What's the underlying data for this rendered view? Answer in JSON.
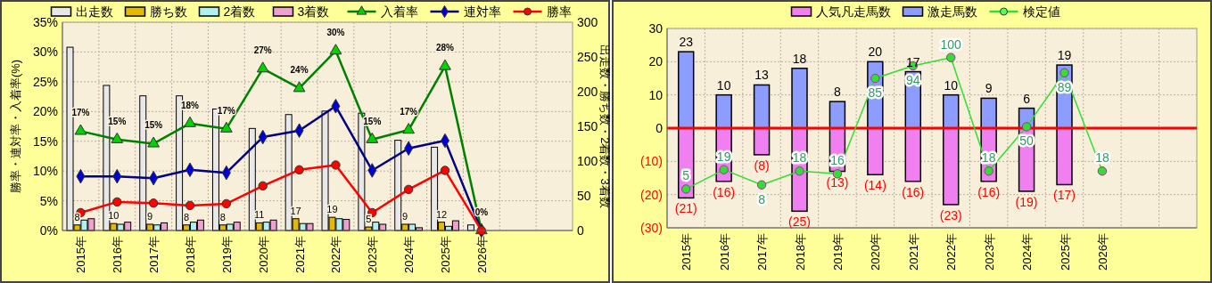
{
  "chart_data": [
    {
      "type": "bar",
      "categories": [
        "2015年",
        "2016年",
        "2017年",
        "2018年",
        "2019年",
        "2020年",
        "2021年",
        "2022年",
        "2023年",
        "2024年",
        "2025年",
        "2026年",
        null,
        null
      ],
      "ylabel": "勝率・連対率・入着率(%)",
      "y2label": "出走数・勝ち数・2着数・3着数",
      "ylim": [
        0,
        35
      ],
      "yticks": [
        {
          "value": 0,
          "label": "0%"
        },
        {
          "value": 5,
          "label": "5%"
        },
        {
          "value": 10,
          "label": "10%"
        },
        {
          "value": 15,
          "label": "15%"
        },
        {
          "value": 20,
          "label": "20%"
        },
        {
          "value": 25,
          "label": "25%"
        },
        {
          "value": 30,
          "label": "30%"
        },
        {
          "value": 35,
          "label": "35%"
        }
      ],
      "y2lim": [
        0,
        300
      ],
      "y2ticks": [
        0,
        50,
        100,
        150,
        200,
        250,
        300
      ],
      "grid": true,
      "legend": "top",
      "series": [
        {
          "name": "出走数",
          "axis": "y2",
          "color": "#e8e8e8",
          "values": [
            264,
            209,
            194,
            194,
            175,
            147,
            167,
            172,
            169,
            130,
            120,
            8,
            null,
            null
          ]
        },
        {
          "name": "勝ち数",
          "axis": "y2",
          "color": "#e6b800",
          "values": [
            8,
            10,
            9,
            8,
            8,
            11,
            17,
            19,
            5,
            9,
            12,
            0,
            null,
            null
          ],
          "value_labels": [
            "8",
            "10",
            "9",
            "8",
            "8",
            "11",
            "17",
            "19",
            "5",
            "9",
            "12",
            null,
            null,
            null
          ]
        },
        {
          "name": "2着数",
          "axis": "y2",
          "color": "#b0f0f0",
          "values": [
            15,
            9,
            8,
            12,
            9,
            12,
            10,
            17,
            12,
            9,
            6,
            0,
            null,
            null
          ]
        },
        {
          "name": "3着数",
          "axis": "y2",
          "color": "#f0a0d0",
          "values": [
            17,
            12,
            11,
            15,
            12,
            15,
            10,
            16,
            9,
            4,
            14,
            0,
            null,
            null
          ]
        },
        {
          "name": "入着率",
          "type": "line",
          "color": "#008000",
          "marker": "triangle",
          "values": [
            16.7,
            15.3,
            14.6,
            18.0,
            17.1,
            27.2,
            23.9,
            30.2,
            15.3,
            16.9,
            27.6,
            0,
            null,
            null
          ],
          "value_labels": [
            "17%",
            "15%",
            "15%",
            "18%",
            "17%",
            "27%",
            "24%",
            "30%",
            "15%",
            "17%",
            "28%",
            "0%",
            null,
            null
          ]
        },
        {
          "name": "連対率",
          "type": "line",
          "color": "#000080",
          "marker": "diamond",
          "values": [
            9.1,
            9.1,
            8.8,
            10.2,
            9.7,
            15.7,
            16.8,
            20.9,
            10.1,
            13.8,
            15.1,
            0,
            null,
            null
          ]
        },
        {
          "name": "勝率",
          "type": "line",
          "color": "#ff0000",
          "marker": "circle",
          "values": [
            3.0,
            4.8,
            4.6,
            4.2,
            4.5,
            7.5,
            10.2,
            11.0,
            3.0,
            6.9,
            10.1,
            0,
            null,
            null
          ]
        }
      ]
    },
    {
      "type": "bar",
      "stacked": true,
      "categories": [
        "2015年",
        "2016年",
        "2017年",
        "2018年",
        "2019年",
        "2020年",
        "2021年",
        "2022年",
        "2023年",
        "2024年",
        "2025年",
        "2026年",
        null,
        null
      ],
      "ylim": [
        -30,
        30
      ],
      "yticks": [
        {
          "value": -30,
          "label": "(30)"
        },
        {
          "value": -20,
          "label": "(20)"
        },
        {
          "value": -10,
          "label": "(10)"
        },
        0,
        10,
        20,
        30
      ],
      "y2lim": [
        -23,
        121
      ],
      "grid": true,
      "legend": "top",
      "ref_lines": [
        {
          "axis": "y",
          "value": 0,
          "color": "#ff0000"
        }
      ],
      "series": [
        {
          "name": "人気凡走馬数",
          "color": "#f080f0",
          "values": [
            -21,
            -16,
            -8,
            -25,
            -13,
            -14,
            -16,
            -23,
            -16,
            -19,
            -17,
            null,
            null,
            null
          ],
          "value_labels": [
            "(21)",
            "(16)",
            "(8)",
            "(25)",
            "(13)",
            "(14)",
            "(16)",
            "(23)",
            "(16)",
            "(19)",
            "(17)",
            null,
            null,
            null
          ]
        },
        {
          "name": "激走馬数",
          "color": "#8c9cff",
          "values": [
            23,
            10,
            13,
            18,
            8,
            20,
            17,
            10,
            9,
            6,
            19,
            null,
            null,
            null
          ],
          "value_labels": [
            "23",
            "10",
            "13",
            "18",
            "8",
            "20",
            "17",
            "10",
            "9",
            "6",
            "19",
            null,
            null,
            null
          ]
        },
        {
          "name": "検定値",
          "type": "line",
          "axis": "y2",
          "color": "#33dd33",
          "marker": "circle",
          "data_labels": true,
          "values": [
            5,
            19,
            8,
            18,
            16,
            85,
            94,
            100,
            18,
            50,
            89,
            18,
            null,
            null
          ]
        }
      ]
    }
  ]
}
